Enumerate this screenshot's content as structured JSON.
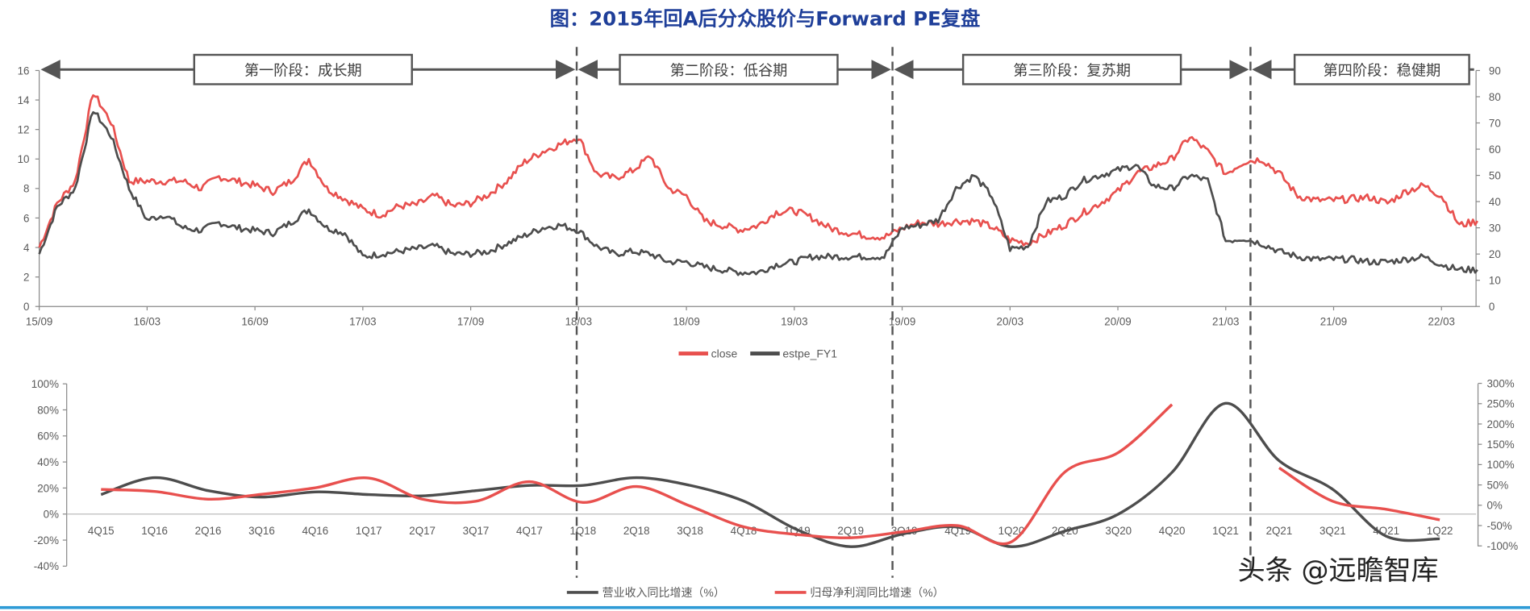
{
  "title": "图：2015年回A后分众股价与Forward PE复盘",
  "phases": [
    "第一阶段：成长期",
    "第二阶段：低谷期",
    "第三阶段：复苏期",
    "第四阶段：稳健期"
  ],
  "watermark": "头条 @远瞻智库",
  "colors": {
    "title": "#1F3F99",
    "red": "#E8504E",
    "gray": "#4D4D4D",
    "bottom_rule": "#2E9BD6"
  },
  "chart_data": [
    {
      "type": "line",
      "dual_axis": true,
      "left_ylim": [
        0,
        16
      ],
      "left_yticks": [
        "0",
        "2",
        "4",
        "6",
        "8",
        "10",
        "12",
        "14",
        "16"
      ],
      "right_ylim": [
        0,
        90
      ],
      "right_yticks": [
        "0",
        "10",
        "20",
        "30",
        "40",
        "50",
        "60",
        "70",
        "80",
        "90"
      ],
      "xticks": [
        "15/09",
        "16/03",
        "16/09",
        "17/03",
        "17/09",
        "18/03",
        "18/09",
        "19/03",
        "19/09",
        "20/03",
        "20/09",
        "21/03",
        "21/09",
        "22/03"
      ],
      "x": [
        "15/09",
        "15/10",
        "15/11",
        "15/12",
        "16/01",
        "16/02",
        "16/03",
        "16/04",
        "16/05",
        "16/06",
        "16/07",
        "16/08",
        "16/09",
        "16/10",
        "16/11",
        "16/12",
        "17/01",
        "17/02",
        "17/03",
        "17/04",
        "17/05",
        "17/06",
        "17/07",
        "17/08",
        "17/09",
        "17/10",
        "17/11",
        "17/12",
        "18/01",
        "18/02",
        "18/03",
        "18/04",
        "18/05",
        "18/06",
        "18/07",
        "18/08",
        "18/09",
        "18/10",
        "18/11",
        "18/12",
        "19/01",
        "19/02",
        "19/03",
        "19/04",
        "19/05",
        "19/06",
        "19/07",
        "19/08",
        "19/09",
        "19/10",
        "19/11",
        "19/12",
        "20/01",
        "20/02",
        "20/03",
        "20/04",
        "20/05",
        "20/06",
        "20/07",
        "20/08",
        "20/09",
        "20/10",
        "20/11",
        "20/12",
        "21/01",
        "21/02",
        "21/03",
        "21/04",
        "21/05",
        "21/06",
        "21/07",
        "21/08",
        "21/09",
        "21/10",
        "21/11",
        "21/12",
        "22/01",
        "22/02",
        "22/03",
        "22/04",
        "22/05"
      ],
      "series": [
        {
          "name": "close",
          "axis": "left",
          "color": "#E8504E",
          "values": [
            4.0,
            7.0,
            8.5,
            14.5,
            12.5,
            8.5,
            8.5,
            8.5,
            8.5,
            8.0,
            8.8,
            8.5,
            8.2,
            7.8,
            8.5,
            10.0,
            8.0,
            7.3,
            6.6,
            6.2,
            6.8,
            6.9,
            7.5,
            6.8,
            7.0,
            7.6,
            8.5,
            9.8,
            10.5,
            11.0,
            11.5,
            9.0,
            8.7,
            9.2,
            10.2,
            8.0,
            7.5,
            5.8,
            5.5,
            5.2,
            5.5,
            6.4,
            6.5,
            6.0,
            5.3,
            5.0,
            4.8,
            4.7,
            5.3,
            5.7,
            5.6,
            5.8,
            5.8,
            5.4,
            4.5,
            4.3,
            4.9,
            5.5,
            6.3,
            7.0,
            7.8,
            9.0,
            9.5,
            10.0,
            11.5,
            10.5,
            9.0,
            9.8,
            10.0,
            9.0,
            7.5,
            7.2,
            7.2,
            7.3,
            7.4,
            7.0,
            7.8,
            8.2,
            7.5,
            5.5,
            5.8
          ]
        },
        {
          "name": "estpe_FY1",
          "axis": "right",
          "color": "#4D4D4D",
          "values": [
            20,
            38,
            45,
            75,
            65,
            45,
            33,
            35,
            30,
            29,
            32,
            30,
            29,
            28,
            32,
            37,
            30,
            28,
            19,
            20,
            21,
            22,
            23,
            20,
            20,
            21,
            24,
            27,
            30,
            31,
            29,
            23,
            20,
            21,
            20,
            17,
            17,
            15,
            14,
            13,
            13,
            16,
            17,
            19,
            19,
            19,
            19,
            19,
            30,
            31,
            33,
            45,
            50,
            42,
            22,
            23,
            40,
            42,
            48,
            50,
            52,
            54,
            46,
            45,
            50,
            48,
            25,
            26,
            24,
            21,
            19,
            18,
            18,
            18,
            17,
            17,
            18,
            19,
            16,
            14,
            14
          ]
        }
      ],
      "legend_position": "bottom"
    },
    {
      "type": "line",
      "dual_axis": true,
      "smooth": true,
      "left_ylim": [
        -40,
        100
      ],
      "left_yticks": [
        "-40%",
        "-20%",
        "0%",
        "20%",
        "40%",
        "60%",
        "80%",
        "100%"
      ],
      "right_ylim": [
        -100,
        300
      ],
      "right_yticks": [
        "-100%",
        "-50%",
        "0%",
        "50%",
        "100%",
        "150%",
        "200%",
        "250%",
        "300%"
      ],
      "categories": [
        "4Q15",
        "1Q16",
        "2Q16",
        "3Q16",
        "4Q16",
        "1Q17",
        "2Q17",
        "3Q17",
        "4Q17",
        "1Q18",
        "2Q18",
        "3Q18",
        "4Q18",
        "1Q19",
        "2Q19",
        "3Q19",
        "4Q19",
        "1Q20",
        "2Q20",
        "3Q20",
        "4Q20",
        "1Q21",
        "2Q21",
        "3Q21",
        "4Q21",
        "1Q22"
      ],
      "series": [
        {
          "name": "营业收入同比增速（%）",
          "axis": "left",
          "color": "#4D4D4D",
          "values": [
            15,
            28,
            18,
            13,
            17,
            15,
            14,
            18,
            22,
            22,
            28,
            22,
            10,
            -12,
            -25,
            -15,
            -10,
            -25,
            -13,
            0,
            32,
            85,
            41,
            19,
            -17,
            -19
          ]
        },
        {
          "name": "归母净利润同比增速（%）",
          "axis": "right",
          "color": "#E8504E",
          "values": [
            39,
            34,
            15,
            27,
            43,
            67,
            15,
            10,
            58,
            7,
            46,
            -2,
            -53,
            -72,
            -80,
            -65,
            -50,
            -90,
            82,
            130,
            248,
            null,
            92,
            10,
            -10,
            -36
          ]
        }
      ],
      "legend_position": "bottom"
    }
  ]
}
